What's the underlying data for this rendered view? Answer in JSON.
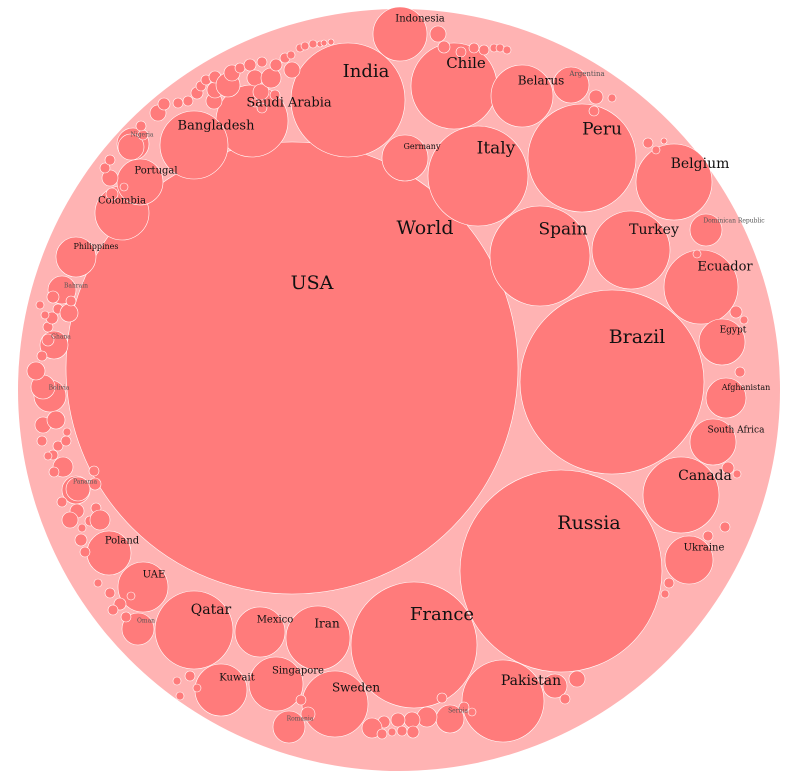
{
  "chart_data": {
    "type": "circle-packing",
    "title": "",
    "root": {
      "name": "World",
      "label_visible": true
    },
    "colors": {
      "outer": "#ffb3b3",
      "bubble": "#ff7b7b",
      "stroke": "#ffffff",
      "text": "#111111"
    },
    "countries": [
      {
        "name": "USA",
        "value": 100
      },
      {
        "name": "Brazil",
        "value": 17
      },
      {
        "name": "Russia",
        "value": 20
      },
      {
        "name": "France",
        "value": 7.8
      },
      {
        "name": "India",
        "value": 6.5
      },
      {
        "name": "Peru",
        "value": 5.5
      },
      {
        "name": "Italy",
        "value": 5
      },
      {
        "name": "Spain",
        "value": 5
      },
      {
        "name": "Chile",
        "value": 3.6
      },
      {
        "name": "Pakistan",
        "value": 3.3
      },
      {
        "name": "Turkey",
        "value": 2.9
      },
      {
        "name": "Belgium",
        "value": 2.8
      },
      {
        "name": "Ecuador",
        "value": 2.7
      },
      {
        "name": "Canada",
        "value": 2.9
      },
      {
        "name": "Saudi Arabia",
        "value": 2.4
      },
      {
        "name": "Bangladesh",
        "value": 2.1
      },
      {
        "name": "Qatar",
        "value": 3.1
      },
      {
        "name": "Sweden",
        "value": 2
      },
      {
        "name": "Iran",
        "value": 1.9
      },
      {
        "name": "Belarus",
        "value": 1.8
      },
      {
        "name": "Indonesia",
        "value": 1.3
      },
      {
        "name": "Singapore",
        "value": 1.3
      },
      {
        "name": "Kuwait",
        "value": 1.4
      },
      {
        "name": "Mexico",
        "value": 1.2
      },
      {
        "name": "Ukraine",
        "value": 1.1
      },
      {
        "name": "South Africa",
        "value": 1
      },
      {
        "name": "Egypt",
        "value": 1
      },
      {
        "name": "Afghanistan",
        "value": 0.8
      },
      {
        "name": "Colombia",
        "value": 1.4
      },
      {
        "name": "Portugal",
        "value": 1
      },
      {
        "name": "Philippines",
        "value": 0.8
      },
      {
        "name": "Poland",
        "value": 0.9
      },
      {
        "name": "UAE",
        "value": 1.2
      },
      {
        "name": "Germany",
        "value": 0.9
      },
      {
        "name": "Argentina",
        "value": 0.6
      },
      {
        "name": "Dominican Republic",
        "value": 0.5
      },
      {
        "name": "Romania",
        "value": 0.45
      },
      {
        "name": "Oman",
        "value": 0.45
      },
      {
        "name": "Serbia",
        "value": 0.4
      },
      {
        "name": "Nigeria",
        "value": 0.45
      },
      {
        "name": "Bolivia",
        "value": 0.45
      },
      {
        "name": "Ghana",
        "value": 0.4
      },
      {
        "name": "Panama",
        "value": 0.4
      },
      {
        "name": "Bahrain",
        "value": 0.35
      }
    ]
  }
}
